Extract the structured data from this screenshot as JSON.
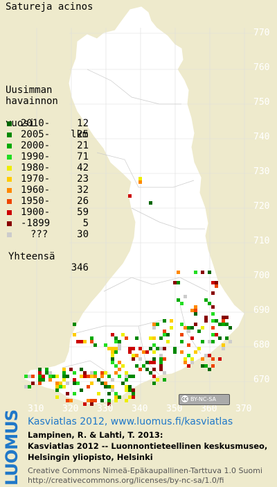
{
  "title": "Satureja acinos",
  "legend": {
    "header": [
      "Uusimman",
      "havainnon",
      "vuosi"
    ],
    "count_header": "lkm",
    "items": [
      {
        "label": "2010-",
        "count": "12",
        "color": "#006600"
      },
      {
        "label": "2005-",
        "count": "25",
        "color": "#008800"
      },
      {
        "label": "2000-",
        "count": "21",
        "color": "#00aa00"
      },
      {
        "label": "1990-",
        "count": "71",
        "color": "#22dd22"
      },
      {
        "label": "1980-",
        "count": "42",
        "color": "#eeee00"
      },
      {
        "label": "1970-",
        "count": "23",
        "color": "#ffcc00"
      },
      {
        "label": "1960-",
        "count": "32",
        "color": "#ff8800"
      },
      {
        "label": "1950-",
        "count": "26",
        "color": "#ee4400"
      },
      {
        "label": "1900-",
        "count": "59",
        "color": "#cc0000"
      },
      {
        "label": "-1899",
        "count": "5",
        "color": "#880000"
      },
      {
        "label": "???",
        "count": "30",
        "color": "#cccccc"
      }
    ],
    "total_label": "Yhteensä",
    "total": "346"
  },
  "y_ticks": [
    "770",
    "760",
    "750",
    "740",
    "730",
    "720",
    "710",
    "700",
    "690",
    "680",
    "670"
  ],
  "x_ticks": [
    "310",
    "320",
    "330",
    "340",
    "350",
    "360",
    "370"
  ],
  "license_badge": "BY-NC-SA",
  "logo": "LUOMUS",
  "link_text": "Kasviatlas 2012, www.luomus.fi/kasviatlas",
  "citation": [
    "Lampinen, R. & Lahti, T. 2013:",
    "Kasviatlas 2012 -- Luonnontieteellinen keskusmuseo,",
    "Helsingin yliopisto, Helsinki"
  ],
  "license": [
    "Creative Commons Nimeä-Epäkaupallinen-Tarttuva 1.0 Suomi",
    "http://creativecommons.org/licenses/by-nc-sa/1.0/fi"
  ],
  "colors": {
    "land": "#ffffff",
    "background": "#eeeacc",
    "link": "#2078c8"
  }
}
